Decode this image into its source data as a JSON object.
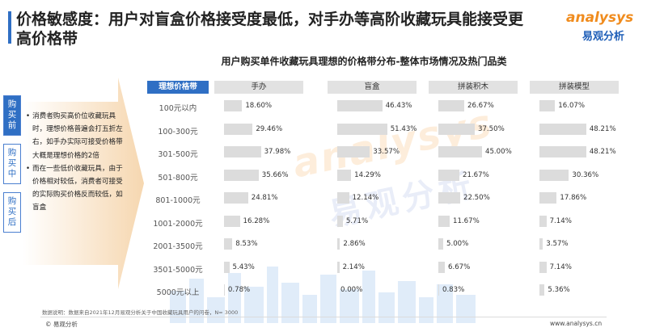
{
  "header": {
    "title": "价格敏感度：用户对盲盒价格接受度最低，对手办等高阶收藏玩具能接受更高价格带",
    "logo_en": "analysys",
    "logo_cn": "易观分析"
  },
  "stages": [
    "购买前",
    "购买中",
    "购买后"
  ],
  "notes": [
    "消费者购买高价位收藏玩具时，理想价格普遍会打五折左右，如手办实际可接受价格带大概是理想价格的2倍",
    "而在一些低价收藏玩具，由于价格相对较低，消费者可接受的实际购买价格反而较低，如盲盒"
  ],
  "watermark": {
    "en": "analysys",
    "cn": "易观分析"
  },
  "chart_data": {
    "type": "bar",
    "title": "用户购买单件收藏玩具理想的价格带分布-整体市场情况及热门品类",
    "row_header": "理想价格带",
    "categories": [
      "100元以内",
      "100-300元",
      "301-500元",
      "501-800元",
      "801-1000元",
      "1001-2000元",
      "2001-3500元",
      "3501-5000元",
      "5000元以上"
    ],
    "series": [
      {
        "name": "手办",
        "values": [
          18.6,
          29.46,
          37.98,
          35.66,
          24.81,
          16.28,
          8.53,
          5.43,
          0.78
        ],
        "labels": [
          "18.60%",
          "29.46%",
          "37.98%",
          "35.66%",
          "24.81%",
          "16.28%",
          "8.53%",
          "5.43%",
          "0.78%"
        ]
      },
      {
        "name": "盲盒",
        "values": [
          46.43,
          51.43,
          33.57,
          14.29,
          12.14,
          5.71,
          2.86,
          2.14,
          0.0
        ],
        "labels": [
          "46.43%",
          "51.43%",
          "33.57%",
          "14.29%",
          "12.14%",
          "5.71%",
          "2.86%",
          "2.14%",
          "0.00%"
        ]
      },
      {
        "name": "拼装积木",
        "values": [
          26.67,
          37.5,
          45.0,
          21.67,
          22.5,
          11.67,
          5.0,
          6.67,
          0.83
        ],
        "labels": [
          "26.67%",
          "37.50%",
          "45.00%",
          "21.67%",
          "22.50%",
          "11.67%",
          "5.00%",
          "6.67%",
          "0.83%"
        ]
      },
      {
        "name": "拼装模型",
        "values": [
          16.07,
          48.21,
          48.21,
          30.36,
          17.86,
          7.14,
          3.57,
          7.14,
          5.36
        ],
        "labels": [
          "16.07%",
          "48.21%",
          "48.21%",
          "30.36%",
          "17.86%",
          "7.14%",
          "3.57%",
          "7.14%",
          "5.36%"
        ]
      }
    ]
  },
  "footer": {
    "source": "数据说明：数据来自2021年12月易观分析关于中国收藏玩具用户的问卷，N= 3000",
    "left": "© 易观分析",
    "right": "www.analysys.cn"
  }
}
